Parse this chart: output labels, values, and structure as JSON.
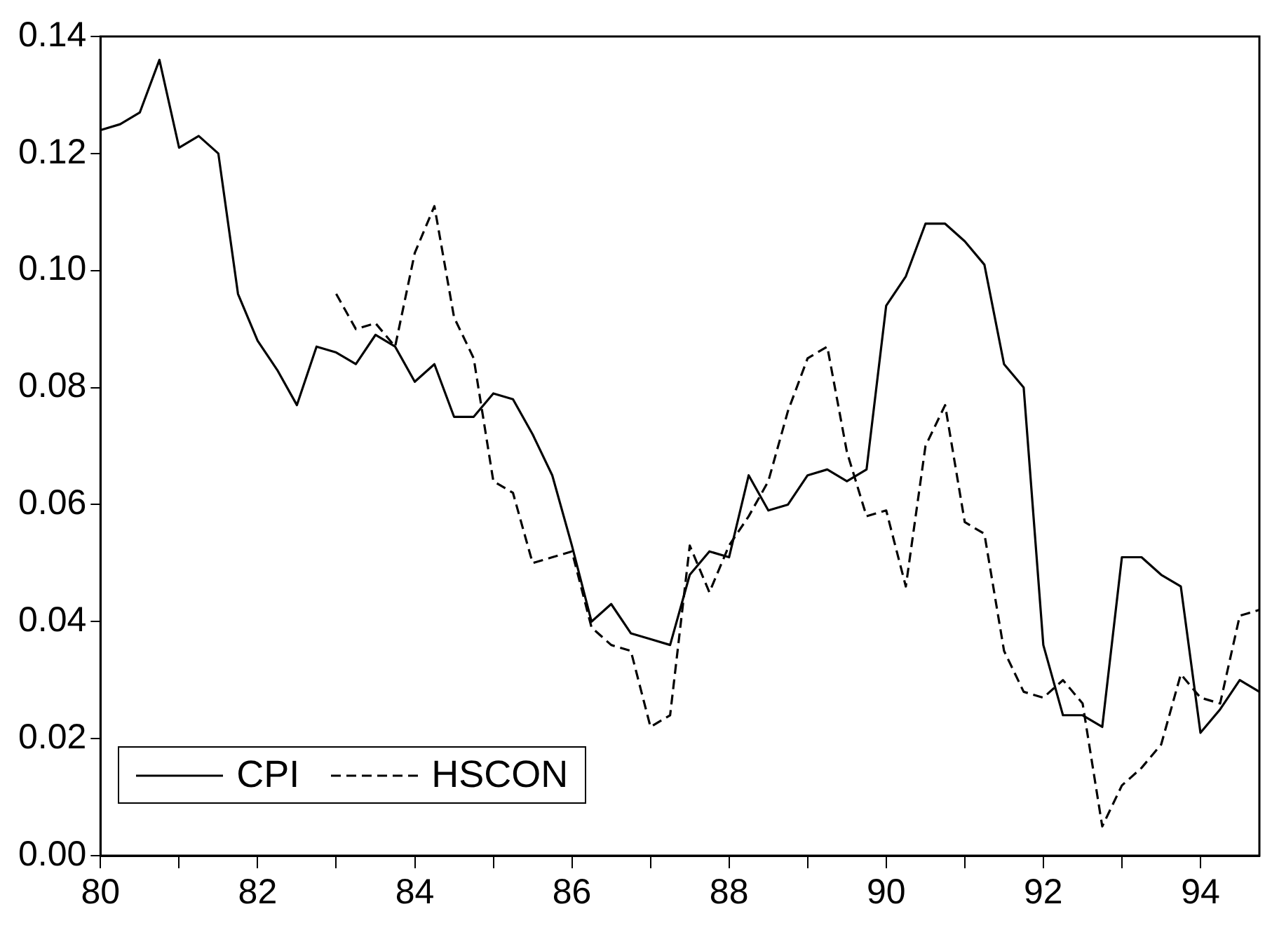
{
  "chart_data": {
    "type": "line",
    "x": [
      80,
      80.25,
      80.5,
      80.75,
      81,
      81.25,
      81.5,
      81.75,
      82,
      82.25,
      82.5,
      82.75,
      83,
      83.25,
      83.5,
      83.75,
      84,
      84.25,
      84.5,
      84.75,
      85,
      85.25,
      85.5,
      85.75,
      86,
      86.25,
      86.5,
      86.75,
      87,
      87.25,
      87.5,
      87.75,
      88,
      88.25,
      88.5,
      88.75,
      89,
      89.25,
      89.5,
      89.75,
      90,
      90.25,
      90.5,
      90.75,
      91,
      91.25,
      91.5,
      91.75,
      92,
      92.25,
      92.5,
      92.75,
      93,
      93.25,
      93.5,
      93.75,
      94,
      94.25,
      94.5,
      94.75
    ],
    "series": [
      {
        "name": "CPI",
        "color": "#000000",
        "line_style": "solid",
        "values": [
          0.124,
          0.125,
          0.127,
          0.136,
          0.121,
          0.123,
          0.12,
          0.096,
          0.088,
          0.083,
          0.077,
          0.087,
          0.086,
          0.084,
          0.089,
          0.087,
          0.081,
          0.084,
          0.075,
          0.075,
          0.079,
          0.078,
          0.072,
          0.065,
          0.053,
          0.04,
          0.043,
          0.038,
          0.037,
          0.036,
          0.048,
          0.052,
          0.051,
          0.065,
          0.059,
          0.06,
          0.065,
          0.066,
          0.064,
          0.066,
          0.094,
          0.099,
          0.108,
          0.108,
          0.105,
          0.101,
          0.084,
          0.08,
          0.036,
          0.024,
          0.024,
          0.022,
          0.051,
          0.051,
          0.048,
          0.046,
          0.021,
          0.025,
          0.03,
          0.028
        ]
      },
      {
        "name": "HSCON",
        "color": "#000000",
        "line_style": "dashed",
        "values": [
          null,
          null,
          null,
          null,
          null,
          null,
          null,
          null,
          null,
          null,
          null,
          null,
          0.096,
          0.09,
          0.091,
          0.087,
          0.103,
          0.111,
          0.092,
          0.085,
          0.064,
          0.062,
          0.05,
          0.051,
          0.052,
          0.039,
          0.036,
          0.035,
          0.022,
          0.024,
          0.053,
          0.045,
          0.053,
          0.058,
          0.064,
          0.076,
          0.085,
          0.087,
          0.069,
          0.058,
          0.059,
          0.046,
          0.07,
          0.077,
          0.057,
          0.055,
          0.035,
          0.028,
          0.027,
          0.03,
          0.026,
          0.005,
          0.012,
          0.015,
          0.019,
          0.031,
          0.027,
          0.026,
          0.041,
          0.042
        ]
      }
    ],
    "xlim": [
      80,
      94.75
    ],
    "xticks": [
      80,
      {
        "value": 81,
        "label": null
      },
      82,
      {
        "value": 83,
        "label": null
      },
      84,
      {
        "value": 85,
        "label": null
      },
      86,
      {
        "value": 87,
        "label": null
      },
      88,
      {
        "value": 89,
        "label": null
      },
      90,
      {
        "value": 91,
        "label": null
      },
      92,
      {
        "value": 93,
        "label": null
      },
      94
    ],
    "ylim": [
      0,
      0.14
    ],
    "yticks": [
      {
        "value": 0,
        "label": "0.00"
      },
      {
        "value": 0.02,
        "label": "0.02"
      },
      {
        "value": 0.04,
        "label": "0.04"
      },
      {
        "value": 0.06,
        "label": "0.06"
      },
      {
        "value": 0.08,
        "label": "0.08"
      },
      {
        "value": 0.1,
        "label": "0.10"
      },
      {
        "value": 0.12,
        "label": "0.12"
      },
      {
        "value": 0.14,
        "label": "0.14"
      }
    ],
    "grid": false,
    "legend": "bottom left",
    "marker": "none"
  }
}
